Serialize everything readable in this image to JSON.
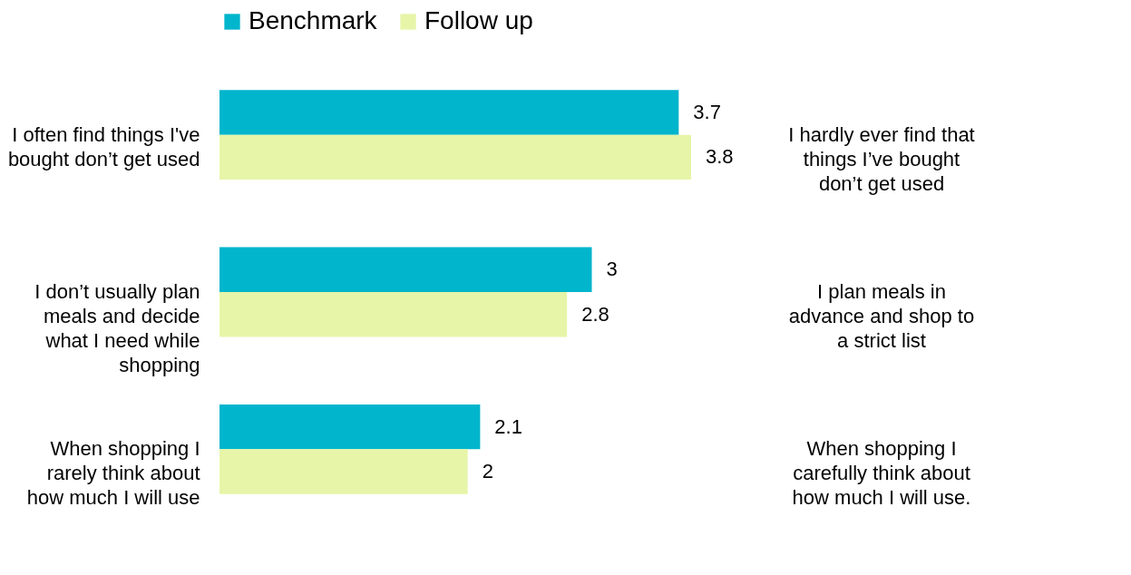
{
  "chart_data": {
    "type": "bar",
    "orientation": "horizontal",
    "categories": [
      "I often find things I've bought don’t get used",
      "I don’t usually plan meals and decide what I need while shopping",
      "When shopping I rarely think about how much I will use"
    ],
    "series": [
      {
        "name": "Benchmark",
        "color": "#00b5cc",
        "values": [
          3.7,
          3,
          2.1
        ]
      },
      {
        "name": "Follow up",
        "color": "#e6f5a8",
        "values": [
          3.8,
          2.8,
          2
        ]
      }
    ],
    "annotations": [
      "I hardly ever find that things I’ve bought don’t get used",
      "I plan meals in advance and shop to a strict list",
      "When shopping I carefully think about how much I will use."
    ],
    "data_labels": true,
    "legend": "top",
    "grid": false
  }
}
